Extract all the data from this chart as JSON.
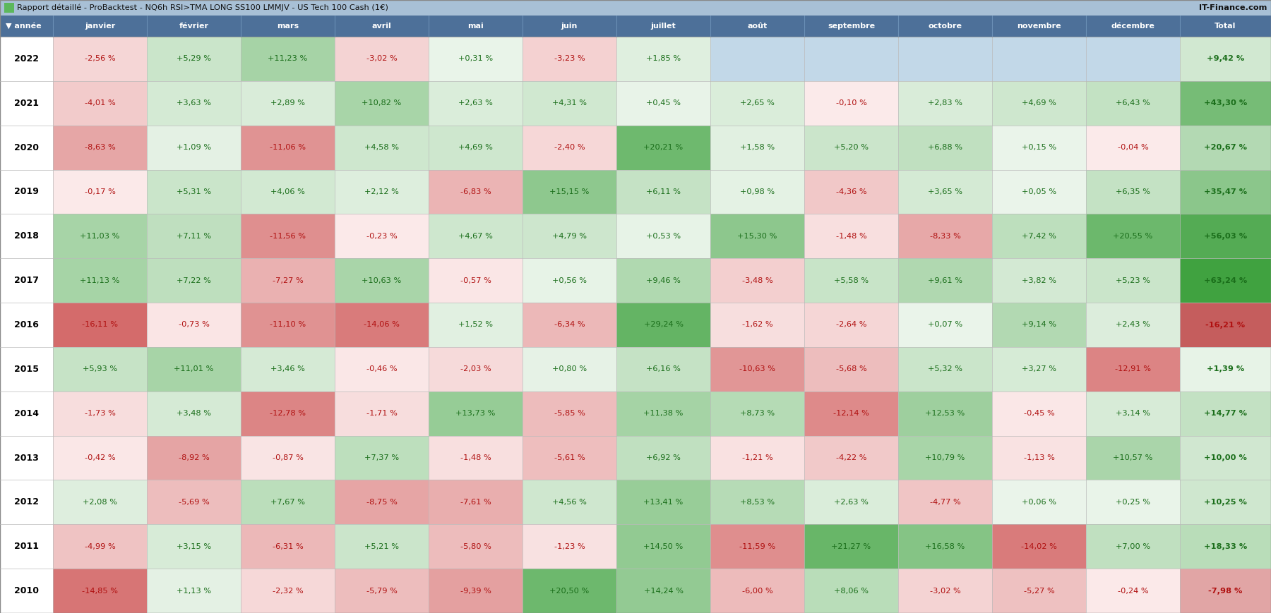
{
  "title": "Rapport détaillé - ProBacktest - NQ6h RSI>TMA LONG SS100 LMMJV - US Tech 100 Cash (1€)",
  "title_right": "IT-Finance.com",
  "columns": [
    "année",
    "janvier",
    "février",
    "mars",
    "avril",
    "mai",
    "juin",
    "juillet",
    "août",
    "septembre",
    "octobre",
    "novembre",
    "décembre",
    "Total"
  ],
  "years": [
    2022,
    2021,
    2020,
    2019,
    2018,
    2017,
    2016,
    2015,
    2014,
    2013,
    2012,
    2011,
    2010
  ],
  "data": {
    "2022": [
      -2.56,
      5.29,
      11.23,
      -3.02,
      0.31,
      -3.23,
      1.85,
      null,
      null,
      null,
      null,
      null,
      9.42
    ],
    "2021": [
      -4.01,
      3.63,
      2.89,
      10.82,
      2.63,
      4.31,
      0.45,
      2.65,
      -0.1,
      2.83,
      4.69,
      6.43,
      43.3
    ],
    "2020": [
      -8.63,
      1.09,
      -11.06,
      4.58,
      4.69,
      -2.4,
      20.21,
      1.58,
      5.2,
      6.88,
      0.15,
      -0.04,
      20.67
    ],
    "2019": [
      -0.17,
      5.31,
      4.06,
      2.12,
      -6.83,
      15.15,
      6.11,
      0.98,
      -4.36,
      3.65,
      0.05,
      6.35,
      35.47
    ],
    "2018": [
      11.03,
      7.11,
      -11.56,
      -0.23,
      4.67,
      4.79,
      0.53,
      15.3,
      -1.48,
      -8.33,
      7.42,
      20.55,
      56.03
    ],
    "2017": [
      11.13,
      7.22,
      -7.27,
      10.63,
      -0.57,
      0.56,
      9.46,
      -3.48,
      5.58,
      9.61,
      3.82,
      5.23,
      63.24
    ],
    "2016": [
      -16.11,
      -0.73,
      -11.1,
      -14.06,
      1.52,
      -6.34,
      29.24,
      -1.62,
      -2.64,
      0.07,
      9.14,
      2.43,
      -16.21
    ],
    "2015": [
      5.93,
      11.01,
      3.46,
      -0.46,
      -2.03,
      0.8,
      6.16,
      -10.63,
      -5.68,
      5.32,
      3.27,
      -12.91,
      1.39
    ],
    "2014": [
      -1.73,
      3.48,
      -12.78,
      -1.71,
      13.73,
      -5.85,
      11.38,
      8.73,
      -12.14,
      12.53,
      -0.45,
      3.14,
      14.77
    ],
    "2013": [
      -0.42,
      -8.92,
      -0.87,
      7.37,
      -1.48,
      -5.61,
      6.92,
      -1.21,
      -4.22,
      10.79,
      -1.13,
      10.57,
      10.0
    ],
    "2012": [
      2.08,
      -5.69,
      7.67,
      -8.75,
      -7.61,
      4.56,
      13.41,
      8.53,
      2.63,
      -4.77,
      0.06,
      0.25,
      10.25
    ],
    "2011": [
      -4.99,
      3.15,
      -6.31,
      5.21,
      -5.8,
      -1.23,
      14.5,
      -11.59,
      21.27,
      16.58,
      -14.02,
      7.0,
      18.33
    ],
    "2010": [
      -14.85,
      1.13,
      -2.32,
      -5.79,
      -9.39,
      20.5,
      14.24,
      -6.0,
      8.06,
      -3.02,
      -5.27,
      -0.24,
      -7.98
    ]
  },
  "header_bg": "#4d7099",
  "header_text": "#ffffff",
  "title_bg": "#a8c0d6",
  "title_text": "#000000",
  "null_color": "#c2d8e8",
  "green_icon": "#5cb85c"
}
